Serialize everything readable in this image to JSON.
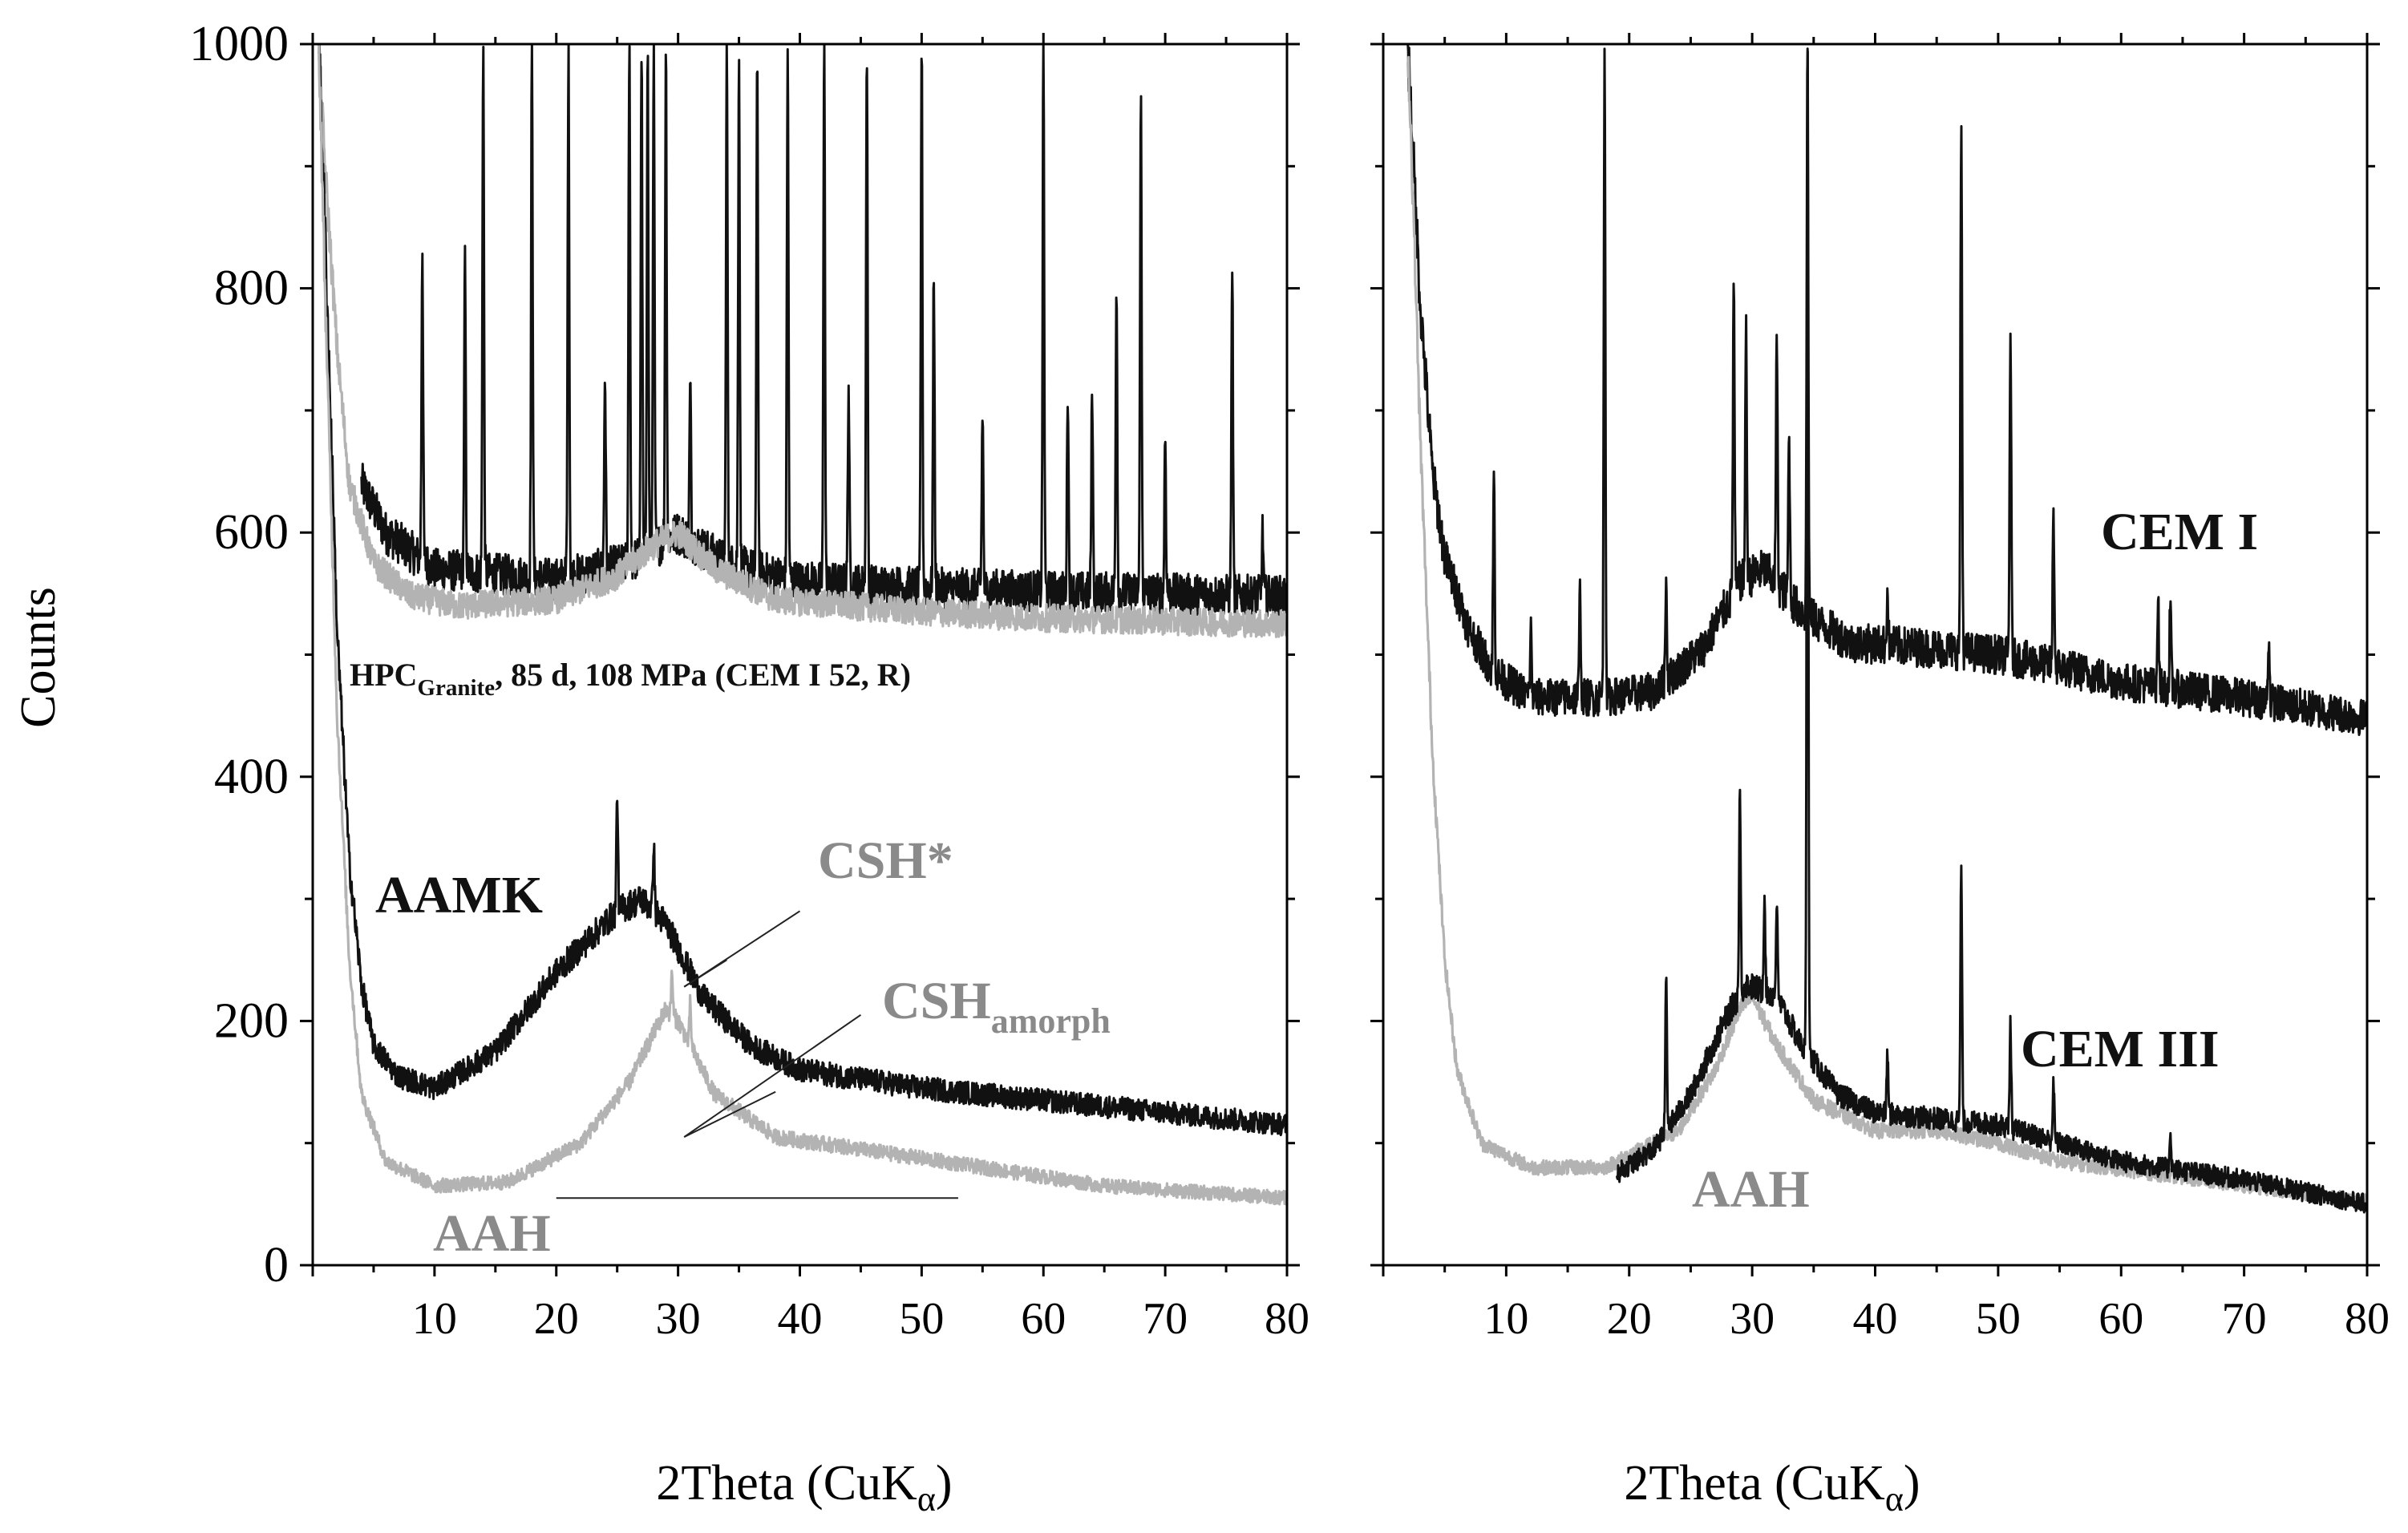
{
  "figure": {
    "ylabel": "Counts",
    "colors": {
      "black": "#111111",
      "gray": "#b3b3b3",
      "annotation_gray": "#8a8a8a",
      "frame": "#000000"
    }
  },
  "chart_data": [
    {
      "type": "line",
      "panel": "left",
      "xlabel": {
        "main": "2Theta (CuK",
        "sub": "α",
        "close": ")"
      },
      "ylabel": "Counts",
      "xlim": [
        0,
        80
      ],
      "ylim": [
        0,
        1000
      ],
      "xticks": [
        10,
        20,
        30,
        40,
        50,
        60,
        70,
        80
      ],
      "yticks": [
        0,
        200,
        400,
        600,
        800,
        1000
      ],
      "series": [
        {
          "name": "HPC Granite",
          "color": "#111111",
          "x_start": 4,
          "x_end": 80,
          "envelope": [
            [
              4,
              640
            ],
            [
              6,
              600
            ],
            [
              10,
              570
            ],
            [
              20,
              562
            ],
            [
              26,
              575
            ],
            [
              30,
              600
            ],
            [
              34,
              575
            ],
            [
              40,
              560
            ],
            [
              50,
              555
            ],
            [
              60,
              552
            ],
            [
              70,
              550
            ],
            [
              80,
              548
            ]
          ],
          "peaks": [
            [
              9,
              835
            ],
            [
              12.5,
              820
            ],
            [
              14,
              1000
            ],
            [
              18,
              1000
            ],
            [
              21,
              1000
            ],
            [
              24,
              730
            ],
            [
              26,
              1000
            ],
            [
              27,
              1000
            ],
            [
              27.5,
              1000
            ],
            [
              28,
              1000
            ],
            [
              29,
              1000
            ],
            [
              31,
              720
            ],
            [
              34,
              1000
            ],
            [
              35,
              1000
            ],
            [
              36.5,
              1000
            ],
            [
              39,
              1000
            ],
            [
              42,
              1000
            ],
            [
              44,
              720
            ],
            [
              45.5,
              1000
            ],
            [
              50,
              1000
            ],
            [
              51,
              810
            ],
            [
              55,
              700
            ],
            [
              60,
              1000
            ],
            [
              62,
              720
            ],
            [
              64,
              720
            ],
            [
              66,
              810
            ],
            [
              68,
              960
            ],
            [
              70,
              680
            ],
            [
              75.5,
              820
            ],
            [
              78,
              600
            ]
          ]
        },
        {
          "name": "HPC Granite (gray)",
          "color": "#b3b3b3",
          "x_start": 0.5,
          "x_end": 80,
          "envelope": [
            [
              0.5,
              1000
            ],
            [
              1,
              900
            ],
            [
              2,
              750
            ],
            [
              3,
              640
            ],
            [
              5,
              575
            ],
            [
              8,
              548
            ],
            [
              12,
              540
            ],
            [
              20,
              545
            ],
            [
              25,
              565
            ],
            [
              28,
              590
            ],
            [
              30,
              600
            ],
            [
              33,
              570
            ],
            [
              38,
              545
            ],
            [
              50,
              535
            ],
            [
              60,
              530
            ],
            [
              80,
              525
            ]
          ],
          "peaks": []
        },
        {
          "name": "AAMK",
          "color": "#111111",
          "x_start": 0.5,
          "x_end": 80,
          "envelope": [
            [
              0.5,
              1000
            ],
            [
              1,
              850
            ],
            [
              2,
              520
            ],
            [
              3,
              330
            ],
            [
              4,
              230
            ],
            [
              5,
              180
            ],
            [
              7,
              155
            ],
            [
              10,
              145
            ],
            [
              15,
              175
            ],
            [
              20,
              240
            ],
            [
              25,
              290
            ],
            [
              27,
              300
            ],
            [
              29,
              280
            ],
            [
              32,
              220
            ],
            [
              36,
              180
            ],
            [
              40,
              160
            ],
            [
              50,
              145
            ],
            [
              60,
              135
            ],
            [
              70,
              125
            ],
            [
              80,
              115
            ]
          ],
          "peaks": [
            [
              25,
              388
            ],
            [
              28,
              348
            ]
          ]
        },
        {
          "name": "AAH",
          "color": "#b3b3b3",
          "x_start": 0.5,
          "x_end": 80,
          "envelope": [
            [
              0.5,
              1000
            ],
            [
              1,
              800
            ],
            [
              2,
              450
            ],
            [
              3,
              250
            ],
            [
              4,
              140
            ],
            [
              6,
              85
            ],
            [
              10,
              65
            ],
            [
              16,
              68
            ],
            [
              22,
              100
            ],
            [
              26,
              150
            ],
            [
              29,
              210
            ],
            [
              30,
              200
            ],
            [
              33,
              140
            ],
            [
              38,
              105
            ],
            [
              45,
              95
            ],
            [
              55,
              80
            ],
            [
              65,
              65
            ],
            [
              80,
              55
            ]
          ],
          "peaks": [
            [
              29.5,
              240
            ],
            [
              31,
              215
            ]
          ]
        }
      ],
      "annotations": [
        {
          "id": "hpc_label",
          "main": "HPC",
          "sub": "Granite",
          "rest": ", 85 d, 108 MPa (CEM I 52, R)",
          "x": 2.5,
          "y": 500
        },
        {
          "id": "aamk_label",
          "text": "AAMK",
          "x": 5,
          "y": 295
        },
        {
          "id": "csh_star_label",
          "text": "CSH*",
          "x": 41,
          "y": 315
        },
        {
          "id": "csh_amorph_label",
          "main": "CSH",
          "sub": "amorph",
          "x": 46,
          "y": 205
        },
        {
          "id": "aah_label",
          "text": "AAH",
          "x": 10,
          "y": 15
        }
      ],
      "arrows": [
        {
          "from": [
            40,
            290
          ],
          "to": [
            30.5,
            228
          ]
        },
        {
          "from": [
            34,
            250
          ],
          "to": [
            30.5,
            228
          ]
        },
        {
          "from": [
            45,
            205
          ],
          "to": [
            30.5,
            105
          ]
        },
        {
          "from": [
            38,
            142
          ],
          "to": [
            30.5,
            105
          ]
        }
      ],
      "baseline_segment": {
        "x": [
          20,
          53
        ],
        "y": 55
      }
    },
    {
      "type": "line",
      "panel": "right",
      "xlabel": {
        "main": "2Theta (CuK",
        "sub": "α",
        "close": ")"
      },
      "xlim": [
        0,
        80
      ],
      "ylim": [
        0,
        1000
      ],
      "xticks": [
        10,
        20,
        30,
        40,
        50,
        60,
        70,
        80
      ],
      "yticks": [
        0,
        200,
        400,
        600,
        800,
        1000
      ],
      "series": [
        {
          "name": "CEM I",
          "color": "#111111",
          "x_start": 2,
          "x_end": 80,
          "envelope": [
            [
              2,
              1000
            ],
            [
              3,
              790
            ],
            [
              4,
              650
            ],
            [
              5,
              580
            ],
            [
              7,
              520
            ],
            [
              9,
              485
            ],
            [
              12,
              465
            ],
            [
              18,
              465
            ],
            [
              22,
              470
            ],
            [
              26,
              505
            ],
            [
              29,
              560
            ],
            [
              31,
              570
            ],
            [
              34,
              535
            ],
            [
              38,
              510
            ],
            [
              45,
              505
            ],
            [
              50,
              500
            ],
            [
              55,
              490
            ],
            [
              60,
              478
            ],
            [
              70,
              465
            ],
            [
              80,
              448
            ]
          ],
          "peaks": [
            [
              9,
              648
            ],
            [
              12,
              520
            ],
            [
              16,
              550
            ],
            [
              18,
              1000
            ],
            [
              23,
              560
            ],
            [
              28.5,
              805
            ],
            [
              29.5,
              765
            ],
            [
              32,
              760
            ],
            [
              33,
              680
            ],
            [
              34.5,
              1000
            ],
            [
              41,
              550
            ],
            [
              47,
              935
            ],
            [
              51,
              770
            ],
            [
              54.5,
              620
            ],
            [
              63,
              545
            ],
            [
              64,
              540
            ],
            [
              72,
              515
            ]
          ]
        },
        {
          "name": "CEM III (gray)",
          "color": "#b3b3b3",
          "x_start": 2,
          "x_end": 80,
          "envelope": [
            [
              2,
              1000
            ],
            [
              2.5,
              850
            ],
            [
              3,
              680
            ],
            [
              4,
              420
            ],
            [
              5,
              250
            ],
            [
              6,
              160
            ],
            [
              8,
              100
            ],
            [
              12,
              80
            ],
            [
              18,
              80
            ],
            [
              24,
              110
            ],
            [
              27,
              160
            ],
            [
              29,
              210
            ],
            [
              30,
              220
            ],
            [
              32,
              180
            ],
            [
              35,
              135
            ],
            [
              40,
              110
            ],
            [
              45,
              110
            ],
            [
              50,
              100
            ],
            [
              55,
              85
            ],
            [
              65,
              72
            ],
            [
              80,
              52
            ]
          ],
          "peaks": []
        },
        {
          "name": "CEM III",
          "color": "#111111",
          "x_start": 19,
          "x_end": 80,
          "envelope": [
            [
              19,
              75
            ],
            [
              22,
              95
            ],
            [
              25,
              140
            ],
            [
              28,
              205
            ],
            [
              29.5,
              230
            ],
            [
              32,
              220
            ],
            [
              34,
              180
            ],
            [
              37,
              140
            ],
            [
              40,
              125
            ],
            [
              45,
              120
            ],
            [
              50,
              115
            ],
            [
              55,
              100
            ],
            [
              60,
              85
            ],
            [
              70,
              70
            ],
            [
              80,
              50
            ]
          ],
          "peaks": [
            [
              23,
              238
            ],
            [
              29,
              390
            ],
            [
              31,
              305
            ],
            [
              32,
              300
            ],
            [
              34.5,
              1000
            ],
            [
              41,
              175
            ],
            [
              47,
              330
            ],
            [
              51,
              200
            ],
            [
              54.5,
              150
            ],
            [
              64,
              110
            ]
          ]
        }
      ],
      "annotations": [
        {
          "id": "cem1_label",
          "text": "CEM I",
          "x": 59,
          "y": 590
        },
        {
          "id": "cem3_label",
          "text": "CEM III",
          "x": 52,
          "y": 170
        },
        {
          "id": "aah_right_label",
          "text": "AAH",
          "x": 25,
          "y": 45
        }
      ]
    }
  ]
}
